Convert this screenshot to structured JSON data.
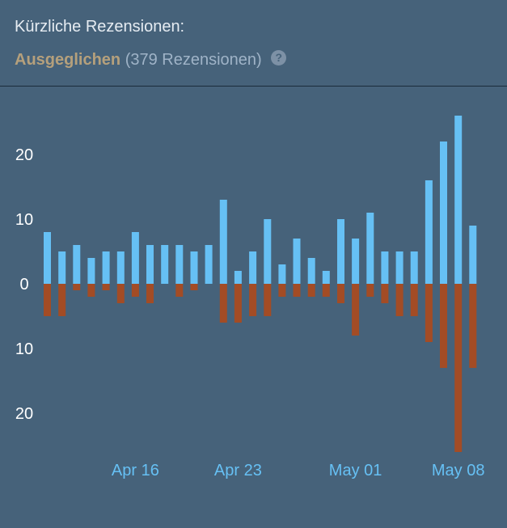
{
  "header": {
    "title": "Kürzliche Rezensionen:",
    "rating": "Ausgeglichen",
    "count_text": "(379 Rezensionen)",
    "help_glyph": "?"
  },
  "chart_data": {
    "type": "bar",
    "y_tick_labels": [
      "20",
      "10",
      "0",
      "10",
      "20"
    ],
    "y_tick_values": [
      20,
      10,
      0,
      -10,
      -20
    ],
    "ylim": [
      -26,
      26
    ],
    "x_tick_labels": [
      "Apr 16",
      "Apr 23",
      "May 01",
      "May 08"
    ],
    "x_tick_dates": [
      "2024-04-16",
      "2024-04-23",
      "2024-05-01",
      "2024-05-08"
    ],
    "dates": [
      "2024-04-10",
      "2024-04-11",
      "2024-04-12",
      "2024-04-13",
      "2024-04-14",
      "2024-04-15",
      "2024-04-16",
      "2024-04-17",
      "2024-04-18",
      "2024-04-19",
      "2024-04-20",
      "2024-04-21",
      "2024-04-22",
      "2024-04-23",
      "2024-04-24",
      "2024-04-25",
      "2024-04-26",
      "2024-04-27",
      "2024-04-28",
      "2024-04-29",
      "2024-04-30",
      "2024-05-01",
      "2024-05-02",
      "2024-05-03",
      "2024-05-04",
      "2024-05-05",
      "2024-05-06",
      "2024-05-07",
      "2024-05-08",
      "2024-05-09",
      "2024-05-10",
      "2024-05-11"
    ],
    "series": [
      {
        "color": "#66c0f4",
        "values": [
          8,
          5,
          6,
          4,
          5,
          5,
          8,
          6,
          6,
          6,
          5,
          6,
          13,
          2,
          5,
          10,
          3,
          7,
          4,
          2,
          10,
          7,
          11,
          5,
          5,
          5,
          16,
          22,
          26,
          9,
          0,
          0
        ]
      },
      {
        "color": "#a34c25",
        "values": [
          -5,
          -5,
          -1,
          -2,
          -1,
          -3,
          -2,
          -3,
          0,
          -2,
          -1,
          0,
          -6,
          -6,
          -5,
          -5,
          -2,
          -2,
          -2,
          -2,
          -3,
          -8,
          -2,
          -3,
          -5,
          -5,
          -9,
          -13,
          -26,
          -13,
          0,
          0
        ]
      }
    ],
    "grid": false
  }
}
